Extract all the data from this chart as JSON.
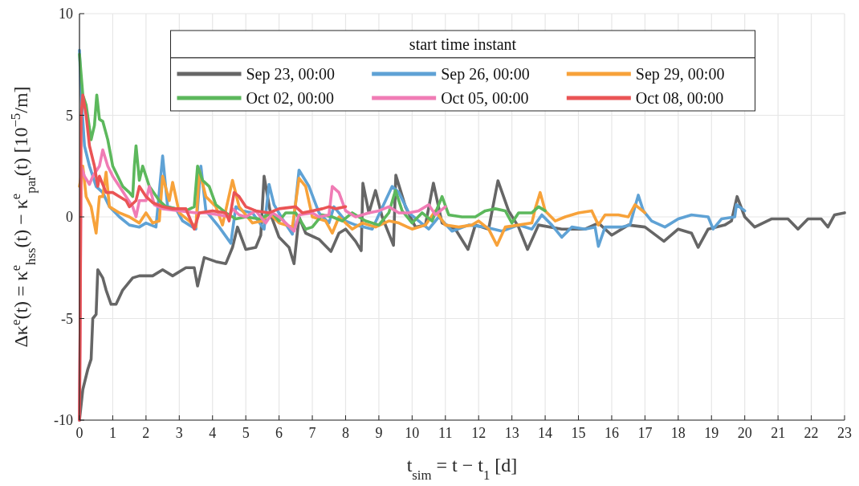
{
  "chart_data": {
    "type": "line",
    "xlabel": "t$_{sim}$ = t − t$_{1}$ [d]",
    "ylabel": "Δκ$^{e}$(t) = κ$^{e}$$_{hss}$(t) − κ$^{e}$$_{par}$(t) [10$^{−5}$/m]",
    "legend_title": "start time instant",
    "legend": "top",
    "grid": true,
    "line_style": "solid",
    "xlim": [
      0,
      23
    ],
    "xticks": [
      0,
      1,
      2,
      3,
      4,
      5,
      6,
      7,
      8,
      9,
      10,
      11,
      12,
      13,
      14,
      15,
      16,
      17,
      18,
      19,
      20,
      21,
      22,
      23
    ],
    "ylim": [
      -10,
      10
    ],
    "yticks": [
      -10,
      -5,
      0,
      5,
      10
    ],
    "series": [
      {
        "name": "Sep 23, 00:00",
        "color": "#666666",
        "x": [
          0,
          0.1,
          0.25,
          0.35,
          0.4,
          0.5,
          0.55,
          0.7,
          0.8,
          0.95,
          1.1,
          1.3,
          1.6,
          1.8,
          2.2,
          2.5,
          2.8,
          3.2,
          3.45,
          3.55,
          3.75,
          4.1,
          4.4,
          4.6,
          4.75,
          5,
          5.3,
          5.45,
          5.55,
          5.75,
          6,
          6.3,
          6.45,
          6.6,
          6.8,
          7.2,
          7.56,
          7.8,
          8,
          8.3,
          8.47,
          8.52,
          8.7,
          8.9,
          9.1,
          9.44,
          9.51,
          9.8,
          10.1,
          10.4,
          10.64,
          10.9,
          11.3,
          11.68,
          11.9,
          12.3,
          12.58,
          12.9,
          13.2,
          13.47,
          13.8,
          14.5,
          15.2,
          15.6,
          16,
          16.5,
          17,
          17.57,
          18,
          18.4,
          18.6,
          18.9,
          19.4,
          19.6,
          19.77,
          20,
          20.3,
          20.8,
          21.3,
          21.6,
          21.9,
          22.3,
          22.5,
          22.7,
          23
        ],
        "values": [
          -10,
          -8.5,
          -7.5,
          -7,
          -5,
          -4.8,
          -2.6,
          -3,
          -3.6,
          -4.3,
          -4.3,
          -3.6,
          -3,
          -2.9,
          -2.9,
          -2.6,
          -2.9,
          -2.5,
          -2.5,
          -3.4,
          -2,
          -2.2,
          -2.3,
          -1.5,
          -0.5,
          -1.6,
          -1.5,
          -0.9,
          2,
          0.1,
          -1,
          -1.5,
          -2.3,
          0,
          -0.8,
          -1.1,
          -1.7,
          -0.8,
          -0.6,
          -1.2,
          -1.66,
          1.66,
          0.2,
          1.3,
          0,
          -1.4,
          2.05,
          0.5,
          -0.5,
          -0.4,
          1.66,
          -0.3,
          -0.6,
          -1.6,
          -0.4,
          -0.6,
          1.78,
          0.3,
          -0.5,
          -1.6,
          -0.4,
          -0.6,
          -0.6,
          -0.3,
          -0.9,
          -0.4,
          -0.5,
          -1.2,
          -0.6,
          -0.8,
          -1.5,
          -0.6,
          -0.4,
          -0.2,
          1,
          0,
          -0.5,
          -0.1,
          -0.1,
          -0.6,
          -0.1,
          -0.1,
          -0.5,
          0.1,
          0.2
        ]
      },
      {
        "name": "Sep 26, 00:00",
        "color": "#5fa2d5",
        "x": [
          0,
          0.05,
          0.15,
          0.3,
          0.5,
          0.7,
          0.9,
          1.2,
          1.5,
          1.8,
          2,
          2.3,
          2.5,
          2.65,
          2.9,
          3.1,
          3.3,
          3.5,
          3.65,
          3.8,
          4.2,
          4.55,
          4.7,
          4.9,
          5.2,
          5.55,
          5.7,
          5.85,
          6.1,
          6.4,
          6.6,
          6.9,
          7.2,
          7.5,
          7.65,
          8,
          8.3,
          8.8,
          9.4,
          9.6,
          9.9,
          10.2,
          10.5,
          10.8,
          11.2,
          11.7,
          12.2,
          12.7,
          13.2,
          13.6,
          13.9,
          14.2,
          14.5,
          14.8,
          15.2,
          15.5,
          15.6,
          15.8,
          16.3,
          16.55,
          16.7,
          16.8,
          16.95,
          17.2,
          17.6,
          18,
          18.4,
          18.9,
          19.05,
          19.3,
          19.7,
          19.75,
          20
        ],
        "values": [
          8.2,
          6,
          3.5,
          2.5,
          1.5,
          1.2,
          0.5,
          0,
          -0.4,
          -0.5,
          -0.3,
          -0.5,
          3,
          0.5,
          0.4,
          -0.2,
          -0.4,
          -0.6,
          2.5,
          0.3,
          -0.5,
          -1.3,
          0.5,
          0.3,
          0.2,
          -0.6,
          1.6,
          0.6,
          -0.1,
          -0.85,
          2.3,
          1.5,
          0.2,
          -0.3,
          0.5,
          -0.2,
          -0.4,
          -0.6,
          1.5,
          1.2,
          0.2,
          -0.2,
          -0.6,
          0,
          -0.7,
          -0.4,
          -0.5,
          -0.7,
          -0.4,
          -0.6,
          0.1,
          -0.4,
          -1,
          -0.5,
          -0.6,
          -0.5,
          -1.45,
          -0.5,
          -0.5,
          -0.4,
          0.5,
          1.07,
          0.3,
          -0.2,
          -0.5,
          -0.1,
          0.1,
          0,
          -0.6,
          -0.1,
          0,
          0.6,
          0.3
        ]
      },
      {
        "name": "Sep 29, 00:00",
        "color": "#f7a23a",
        "x": [
          0,
          0.1,
          0.2,
          0.35,
          0.5,
          0.6,
          0.7,
          0.8,
          0.9,
          1.2,
          1.5,
          1.8,
          2,
          2.2,
          2.4,
          2.5,
          2.7,
          2.8,
          3,
          3.3,
          3.5,
          3.6,
          3.8,
          4.1,
          4.3,
          4.6,
          4.8,
          5.2,
          5.5,
          5.7,
          6,
          6.4,
          6.6,
          6.8,
          7,
          7.4,
          7.6,
          7.8,
          8.2,
          8.5,
          8.9,
          9.3,
          9.6,
          10,
          10.4,
          10.7,
          11,
          11.4,
          11.8,
          12,
          12.3,
          12.55,
          12.8,
          13.2,
          13.6,
          13.7,
          13.85,
          14,
          14.3,
          14.6,
          15,
          15.4,
          15.6,
          15.8,
          16.2,
          16.5,
          16.7,
          17
        ],
        "values": [
          1.5,
          2.5,
          1,
          0.5,
          -0.8,
          1,
          1,
          2.2,
          0.5,
          0.2,
          0,
          -0.3,
          0.2,
          -0.3,
          -0.2,
          2,
          0.8,
          1.7,
          0.2,
          -0.2,
          -0.5,
          2.3,
          1,
          0.5,
          -0.4,
          1.8,
          0.5,
          -0.3,
          -0.2,
          0.2,
          -0.3,
          -0.5,
          1.9,
          1.5,
          0,
          -0.2,
          -0.8,
          0,
          -0.6,
          -0.3,
          -0.5,
          -0.2,
          -0.3,
          -0.6,
          -0.4,
          0.3,
          -0.4,
          -0.5,
          -0.4,
          -0.2,
          -0.6,
          -1.4,
          -0.5,
          -0.4,
          -0.3,
          0.4,
          1.2,
          0.3,
          -0.2,
          0,
          0.2,
          0.3,
          -0.4,
          0.1,
          0.1,
          0,
          0.6,
          0.2
        ]
      },
      {
        "name": "Oct 02, 00:00",
        "color": "#5cb85c",
        "x": [
          0,
          0.1,
          0.2,
          0.35,
          0.45,
          0.52,
          0.6,
          0.7,
          0.85,
          1,
          1.3,
          1.5,
          1.6,
          1.65,
          1.7,
          1.8,
          1.9,
          2.1,
          2.4,
          2.6,
          2.9,
          3.2,
          3.45,
          3.55,
          3.7,
          3.9,
          4.1,
          4.4,
          4.7,
          5,
          5.4,
          5.8,
          6,
          6.2,
          6.5,
          6.8,
          7,
          7.3,
          7.6,
          7.9,
          8.2,
          8.6,
          9,
          9.3,
          9.5,
          9.7,
          10,
          10.3,
          10.6,
          10.9,
          11.1,
          11.5,
          11.9,
          12.2,
          12.5,
          12.8,
          13,
          13.2,
          13.6,
          13.8,
          14
        ],
        "values": [
          8,
          6,
          5.5,
          3.8,
          4.5,
          6,
          4.8,
          4.7,
          3.8,
          2.5,
          1.5,
          1.2,
          1,
          2.5,
          3.5,
          1.8,
          2.5,
          1.5,
          0.8,
          0.5,
          0.4,
          0.3,
          0.5,
          2.5,
          1.8,
          1.5,
          0.6,
          0.2,
          -0.1,
          0,
          -0.1,
          0.2,
          -0.2,
          0.2,
          0.2,
          -0.6,
          -0.5,
          0.1,
          0,
          -0.2,
          0.2,
          -0.2,
          -0.4,
          0.2,
          1.3,
          0.3,
          -0.3,
          0.2,
          -0.2,
          1,
          0.1,
          0,
          0,
          0.3,
          0.4,
          0.3,
          -0.3,
          0.2,
          0.2,
          0.5,
          0.3
        ]
      },
      {
        "name": "Oct 05, 00:00",
        "color": "#f07cb5",
        "x": [
          0,
          0.02,
          0.05,
          0.15,
          0.3,
          0.4,
          0.6,
          0.7,
          0.85,
          1,
          1.2,
          1.4,
          1.6,
          1.7,
          1.8,
          2,
          2.1,
          2.25,
          2.5,
          3,
          3.5,
          3.8,
          4.2,
          4.5,
          4.6,
          4.8,
          5,
          5.3,
          5.6,
          5.8,
          6,
          6.2,
          6.45,
          6.6,
          7,
          7.2,
          7.5,
          7.6,
          7.8,
          8,
          8.3,
          8.7,
          9,
          9.3,
          9.6,
          9.9,
          10.2,
          10.5,
          10.7,
          11
        ],
        "values": [
          -10,
          -5.5,
          2.5,
          2,
          1.6,
          2,
          2.5,
          3.3,
          2.5,
          2,
          1.5,
          1,
          0.5,
          0,
          0.8,
          0.8,
          1.5,
          0.6,
          0.4,
          0.3,
          0.2,
          0.2,
          0.1,
          0,
          0.4,
          0.1,
          0,
          0.3,
          -0.3,
          0.2,
          0,
          -0.3,
          -0.7,
          0.1,
          0.2,
          0,
          0.1,
          1.5,
          1.2,
          0.3,
          0,
          0.2,
          0.3,
          0.5,
          0.2,
          0.2,
          0.3,
          0.6,
          0.1,
          0.5
        ]
      },
      {
        "name": "Oct 08, 00:00",
        "color": "#ea5455",
        "x": [
          0,
          0.02,
          0.05,
          0.1,
          0.2,
          0.3,
          0.45,
          0.55,
          0.6,
          0.8,
          1,
          1.2,
          1.4,
          1.5,
          1.7,
          1.8,
          2,
          2.2,
          2.5,
          2.8,
          3.2,
          3.45,
          3.6,
          4,
          4.4,
          4.5,
          4.65,
          4.8,
          5,
          5.3,
          5.7,
          6,
          6.5,
          6.7,
          7,
          7.3,
          7.5,
          7.7,
          8
        ],
        "values": [
          -10,
          -5.5,
          5,
          6,
          5,
          3.5,
          2.5,
          1.5,
          2,
          1.2,
          1.2,
          1,
          0.8,
          0.5,
          0.8,
          1.5,
          1,
          0.7,
          0.5,
          0.4,
          0.4,
          -0.6,
          0.2,
          0.3,
          0.2,
          -0.2,
          1.2,
          1,
          0.5,
          0.3,
          0.2,
          0.4,
          0.5,
          0.2,
          0.3,
          0.4,
          0.5,
          0.4,
          0.5
        ]
      }
    ]
  }
}
